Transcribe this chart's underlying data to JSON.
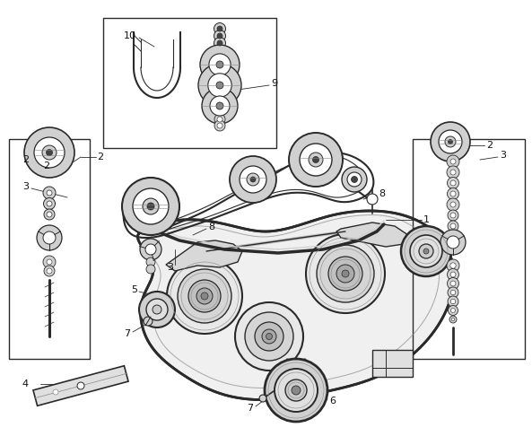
{
  "bg_color": "#ffffff",
  "fig_width": 5.93,
  "fig_height": 4.96,
  "dpi": 100,
  "line_color": "#2a2a2a",
  "light_gray": "#d0d0d0",
  "mid_gray": "#888888",
  "dark_gray": "#444444"
}
